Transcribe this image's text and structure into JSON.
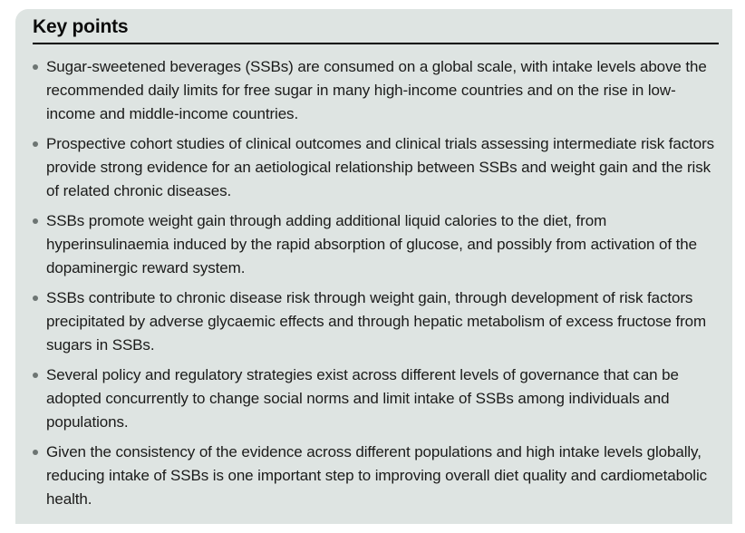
{
  "key_points_box": {
    "title": "Key points",
    "bullets": [
      "Sugar-sweetened beverages (SSBs) are consumed on a global scale, with intake levels above the recommended daily limits for free sugar in many high-income countries and on the rise in low-income and middle-income countries.",
      "Prospective cohort studies of clinical outcomes and clinical trials assessing intermediate risk factors provide strong evidence for an aetiological relationship between SSBs and weight gain and the risk of related chronic diseases.",
      "SSBs promote weight gain through adding additional liquid calories to the diet, from hyperinsulinaemia induced by the rapid absorption of glucose, and possibly from activation of the dopaminergic reward system.",
      "SSBs contribute to chronic disease risk through weight gain, through development of risk factors precipitated by adverse glycaemic effects and through hepatic metabolism of excess fructose from sugars in SSBs.",
      "Several policy and regulatory strategies exist across different levels of governance that can be adopted concurrently to change social norms and limit intake of SSBs among individuals and populations.",
      "Given the consistency of the evidence across different populations and high intake levels globally, reducing intake of SSBs is one important step to improving overall diet quality and cardiometabolic health."
    ],
    "colors": {
      "background": "#dee4e2",
      "title_text": "#0c0c0c",
      "body_text": "#1b1b1a",
      "bullet_dot": "#6d7573",
      "title_rule": "#000000"
    }
  }
}
